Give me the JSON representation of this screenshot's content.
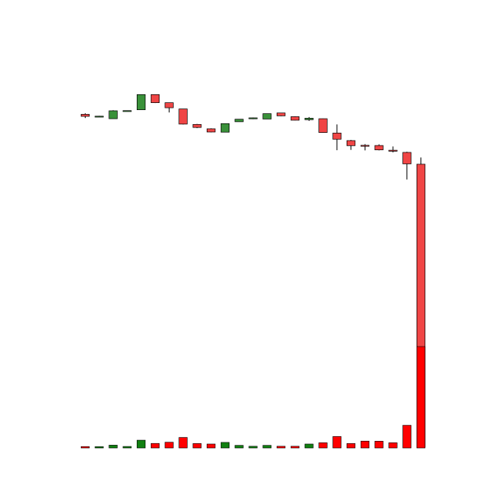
{
  "chart_data": {
    "type": "candlestick",
    "title": "",
    "xlabel": "",
    "ylabel": "",
    "grid": false,
    "axes_visible": false,
    "colors": {
      "up_body": "#3a913a",
      "down_body": "#f04545",
      "wick": "#000000",
      "volume_up": "#118011",
      "volume_down": "#ff0000",
      "outline": "#000000"
    },
    "price_range": [
      -72,
      150
    ],
    "volume_range": [
      0,
      100
    ],
    "candles": [
      {
        "o": 126.0,
        "h": 126.6,
        "l": 123.8,
        "c": 124.8
      },
      {
        "o": 124.9,
        "h": 125.1,
        "l": 124.6,
        "c": 124.9
      },
      {
        "o": 123.4,
        "h": 128.4,
        "l": 123.4,
        "c": 128.1
      },
      {
        "o": 128.1,
        "h": 128.3,
        "l": 128.0,
        "c": 128.2
      },
      {
        "o": 128.7,
        "h": 137.7,
        "l": 128.7,
        "c": 137.7
      },
      {
        "o": 137.7,
        "h": 137.7,
        "l": 132.7,
        "c": 132.9
      },
      {
        "o": 132.9,
        "h": 132.9,
        "l": 127.1,
        "c": 129.9
      },
      {
        "o": 129.2,
        "h": 129.2,
        "l": 120.0,
        "c": 120.2
      },
      {
        "o": 120.0,
        "h": 120.3,
        "l": 117.8,
        "c": 118.2
      },
      {
        "o": 117.4,
        "h": 117.7,
        "l": 115.3,
        "c": 115.5
      },
      {
        "o": 115.4,
        "h": 120.5,
        "l": 115.4,
        "c": 120.5
      },
      {
        "o": 121.6,
        "h": 123.1,
        "l": 121.6,
        "c": 123.1
      },
      {
        "o": 123.5,
        "h": 124.1,
        "l": 123.1,
        "c": 123.9
      },
      {
        "o": 123.2,
        "h": 126.4,
        "l": 123.2,
        "c": 126.4
      },
      {
        "o": 126.8,
        "h": 126.9,
        "l": 124.9,
        "c": 125.1
      },
      {
        "o": 124.6,
        "h": 124.8,
        "l": 122.4,
        "c": 122.5
      },
      {
        "o": 122.8,
        "h": 124.4,
        "l": 122.1,
        "c": 123.7
      },
      {
        "o": 123.4,
        "h": 123.5,
        "l": 115.1,
        "c": 115.2
      },
      {
        "o": 114.9,
        "h": 120.0,
        "l": 104.7,
        "c": 111.2
      },
      {
        "o": 110.4,
        "h": 110.8,
        "l": 104.9,
        "c": 107.4
      },
      {
        "o": 107.6,
        "h": 108.3,
        "l": 104.6,
        "c": 107.3
      },
      {
        "o": 107.5,
        "h": 108.2,
        "l": 104.6,
        "c": 104.9
      },
      {
        "o": 104.7,
        "h": 106.9,
        "l": 103.4,
        "c": 104.1
      },
      {
        "o": 103.4,
        "h": 103.8,
        "l": 87.3,
        "c": 96.6
      },
      {
        "o": 96.4,
        "h": 100.4,
        "l": -71.5,
        "c": -71.5
      }
    ],
    "volumes": [
      1.4,
      1.3,
      2.8,
      1.5,
      7.7,
      4.5,
      5.7,
      10.4,
      4.4,
      3.9,
      5.5,
      2.6,
      1.7,
      2.6,
      1.7,
      1.7,
      3.9,
      5.2,
      11.3,
      4.4,
      6.8,
      6.7,
      5.2,
      22.4,
      100.0
    ]
  }
}
